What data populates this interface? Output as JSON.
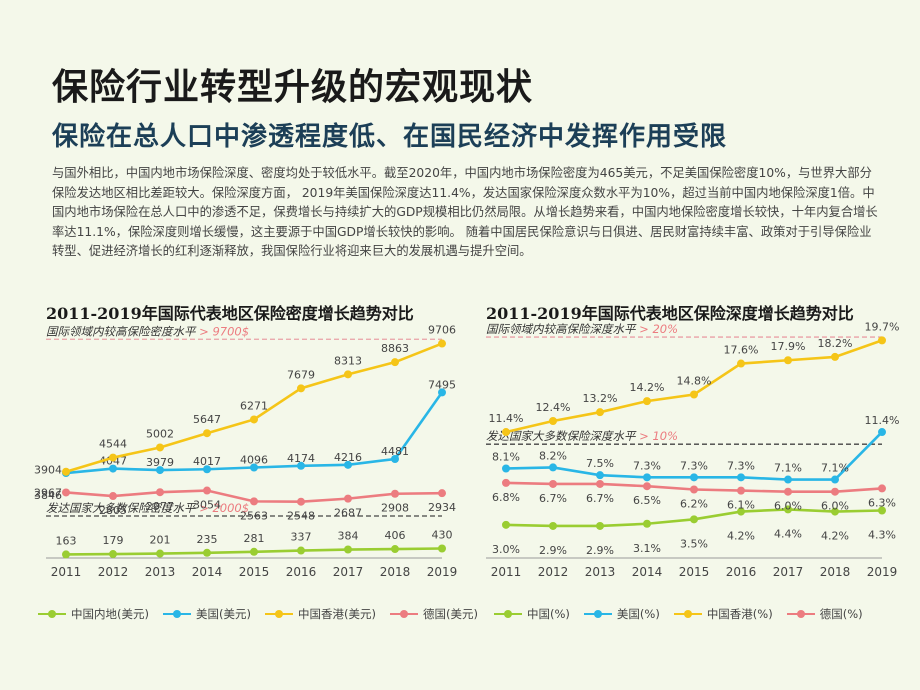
{
  "title": "保险行业转型升级的宏观现状",
  "subtitle": "保险在总人口中渗透程度低、在国民经济中发挥作用受限",
  "body": "与国外相比，中国内地市场保险深度、密度均处于较低水平。截至2020年，中国内地市场保险密度为465美元，不足美国保险密度10%，与世界大部分保险发达地区相比差距较大。保险深度方面，  2019年美国保险深度达11.4%，发达国家保险深度众数水平为10%，超过当前中国内地保险深度1倍。中国内地市场保险在总人口中的渗透不足，保费增长与持续扩大的GDP规模相比仍然局限。从增长趋势来看，中国内地保险密度增长较快，十年内复合增长率达11.1%，保险深度则增长缓慢，这主要源于中国GDP增长较快的影响。  随着中国居民保险意识与日俱进、居民财富持续丰富、政策对于引导保险业转型、促进经济增长的红利逐渐释放，我国保险行业将迎来巨大的发展机遇与提升空间。",
  "colors": {
    "china": "#9acd32",
    "usa": "#29b6e6",
    "hongkong": "#f5c518",
    "germany": "#ec7c80",
    "ref": "#e9a0a6"
  },
  "chart_data": [
    {
      "type": "line",
      "title": "2011-2019年国际代表地区保险密度增长趋势对比",
      "categories": [
        "2011",
        "2012",
        "2013",
        "2014",
        "2015",
        "2016",
        "2017",
        "2018",
        "2019"
      ],
      "ylim": [
        0,
        10500
      ],
      "series": [
        {
          "name": "中国内地(美元)",
          "key": "china",
          "values": [
            163,
            179,
            201,
            235,
            281,
            337,
            384,
            406,
            430
          ],
          "labels": [
            "163",
            "179",
            "201",
            "235",
            "281",
            "337",
            "384",
            "406",
            "430"
          ]
        },
        {
          "name": "美国(美元)",
          "key": "usa",
          "values": [
            3846,
            4047,
            3979,
            4017,
            4096,
            4174,
            4216,
            4481,
            7495
          ],
          "labels": [
            "3846",
            "4047",
            "3979",
            "4017",
            "4096",
            "4174",
            "4216",
            "4481",
            "7495"
          ]
        },
        {
          "name": "中国香港(美元)",
          "key": "hongkong",
          "values": [
            3904,
            4544,
            5002,
            5647,
            6271,
            7679,
            8313,
            8863,
            9706
          ],
          "labels": [
            "3904",
            "4544",
            "5002",
            "5647",
            "6271",
            "7679",
            "8313",
            "8863",
            "9706"
          ]
        },
        {
          "name": "德国(美元)",
          "key": "germany",
          "values": [
            2967,
            2805,
            2977,
            3054,
            2563,
            2548,
            2687,
            2908,
            2934
          ],
          "labels": [
            "2967",
            "2805",
            "2977",
            "3054",
            "2563",
            "2548",
            "2687",
            "2908",
            "2934"
          ]
        }
      ],
      "reference_lines": [
        {
          "label": "国际领域内较高保险密度水平",
          "value_label": "> 9700$",
          "value": 9900,
          "color": "#e9a0a6"
        },
        {
          "label": "发达国家大多数保险密度水平",
          "value_label": "> 2000$",
          "value": 1900,
          "color": "#444444"
        }
      ]
    },
    {
      "type": "line",
      "title": "2011-2019年国际代表地区保险深度增长趋势对比",
      "categories": [
        "2011",
        "2012",
        "2013",
        "2014",
        "2015",
        "2016",
        "2017",
        "2018",
        "2019"
      ],
      "ylim": [
        0,
        21
      ],
      "series": [
        {
          "name": "中国(%)",
          "key": "china",
          "values": [
            3.0,
            2.9,
            2.9,
            3.1,
            3.5,
            4.2,
            4.4,
            4.2,
            4.3
          ],
          "labels": [
            "3.0%",
            "2.9%",
            "2.9%",
            "3.1%",
            "3.5%",
            "4.2%",
            "4.4%",
            "4.2%",
            "4.3%"
          ]
        },
        {
          "name": "美国(%)",
          "key": "usa",
          "values": [
            8.1,
            8.2,
            7.5,
            7.3,
            7.3,
            7.3,
            7.1,
            7.1,
            11.4
          ],
          "labels": [
            "8.1%",
            "8.2%",
            "7.5%",
            "7.3%",
            "7.3%",
            "7.3%",
            "7.1%",
            "7.1%",
            "11.4%"
          ]
        },
        {
          "name": "中国香港(%)",
          "key": "hongkong",
          "values": [
            11.4,
            12.4,
            13.2,
            14.2,
            14.8,
            17.6,
            17.9,
            18.2,
            19.7
          ],
          "labels": [
            "11.4%",
            "12.4%",
            "13.2%",
            "14.2%",
            "14.8%",
            "17.6%",
            "17.9%",
            "18.2%",
            "19.7%"
          ]
        },
        {
          "name": "德国(%)",
          "key": "germany",
          "values": [
            6.8,
            6.7,
            6.7,
            6.5,
            6.2,
            6.1,
            6.0,
            6.0,
            6.3
          ],
          "labels": [
            "6.8%",
            "6.7%",
            "6.7%",
            "6.5%",
            "6.2%",
            "6.1%",
            "6.0%",
            "6.0%",
            "6.3%"
          ]
        }
      ],
      "reference_lines": [
        {
          "label": "国际领域内较高保险深度水平",
          "value_label": "> 20%",
          "value": 20.0,
          "color": "#e9a0a6"
        },
        {
          "label": "发达国家大多数保险深度水平",
          "value_label": "> 10%",
          "value": 10.3,
          "color": "#444444"
        }
      ]
    }
  ]
}
